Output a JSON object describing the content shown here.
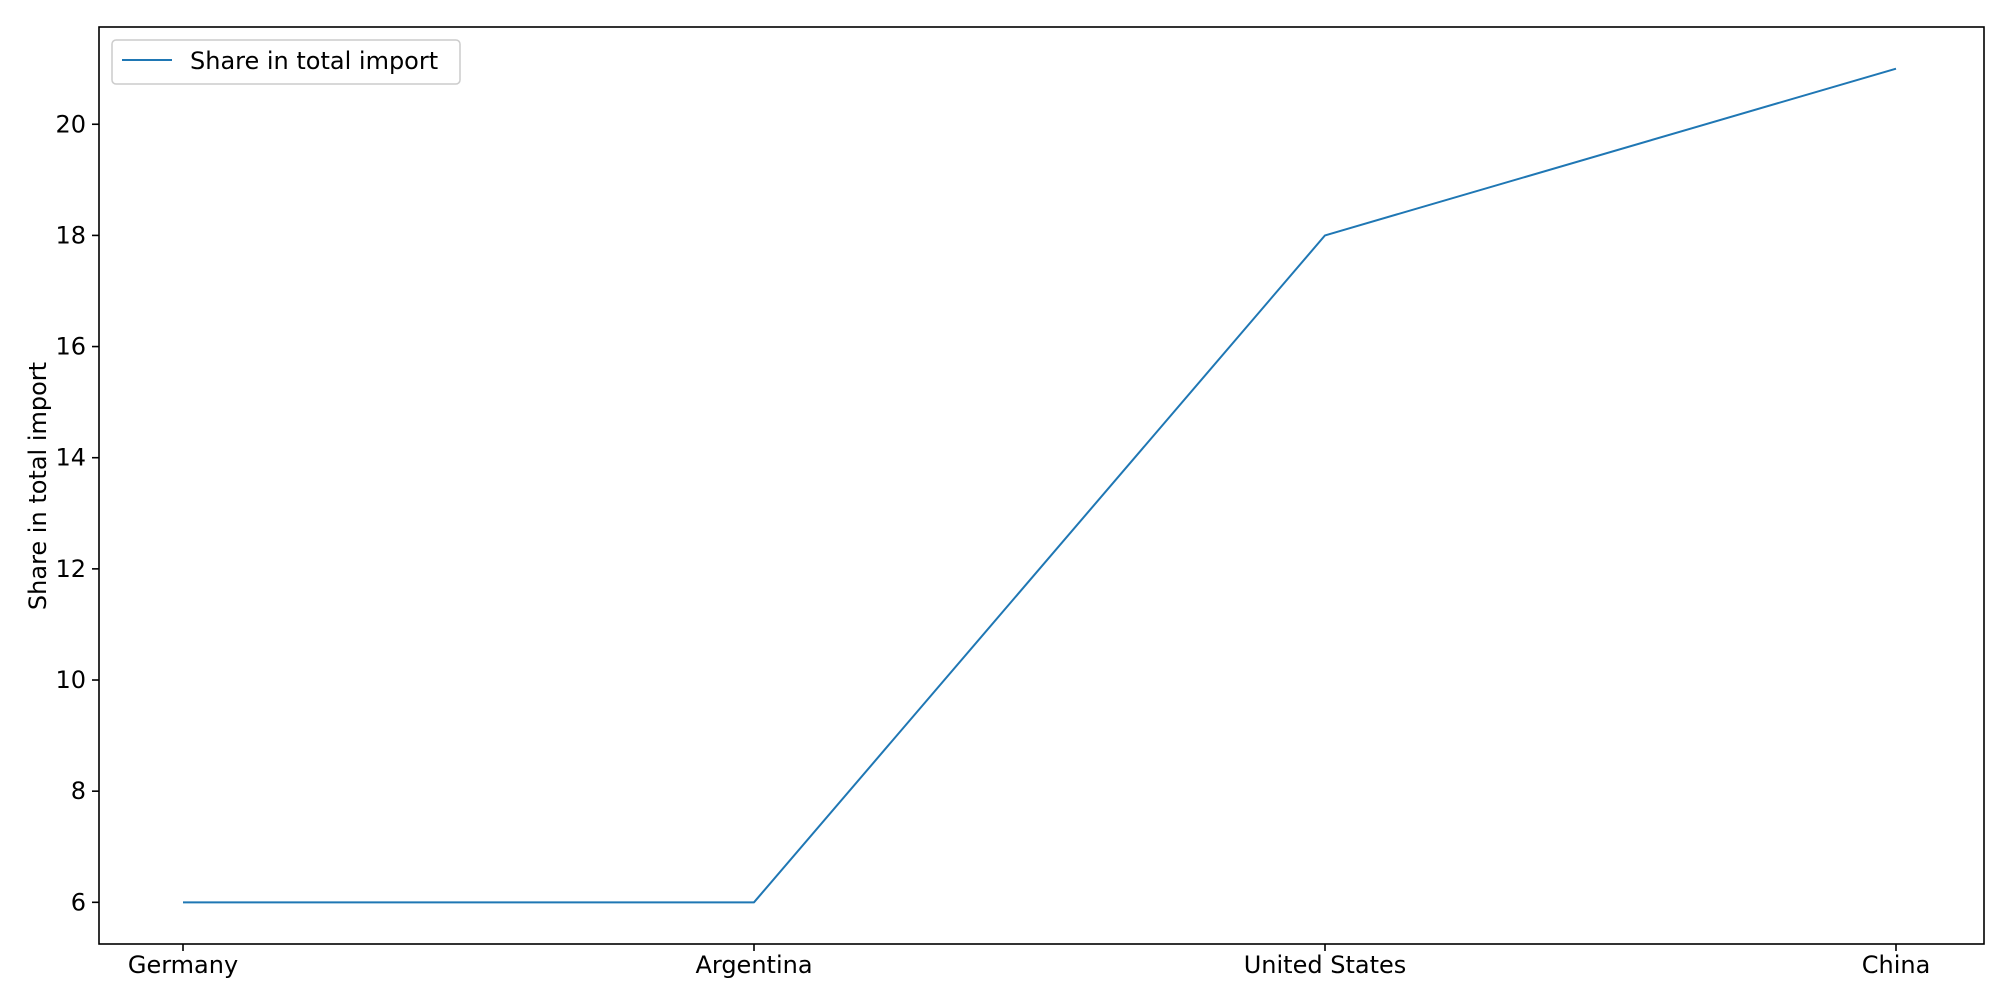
{
  "chart_data": {
    "type": "line",
    "title": "",
    "xlabel": "",
    "ylabel": "Share in total import",
    "categories": [
      "Germany",
      "Argentina",
      "United States",
      "China"
    ],
    "series": [
      {
        "name": "Share in total import",
        "values": [
          6,
          6,
          18,
          21
        ],
        "color": "#1f77b4"
      }
    ],
    "ylim": [
      5.25,
      21.75
    ],
    "yticks": [
      6,
      8,
      10,
      12,
      14,
      16,
      18,
      20
    ],
    "grid": false,
    "legend": {
      "position": "top-left",
      "entries": [
        "Share in total import"
      ]
    }
  }
}
